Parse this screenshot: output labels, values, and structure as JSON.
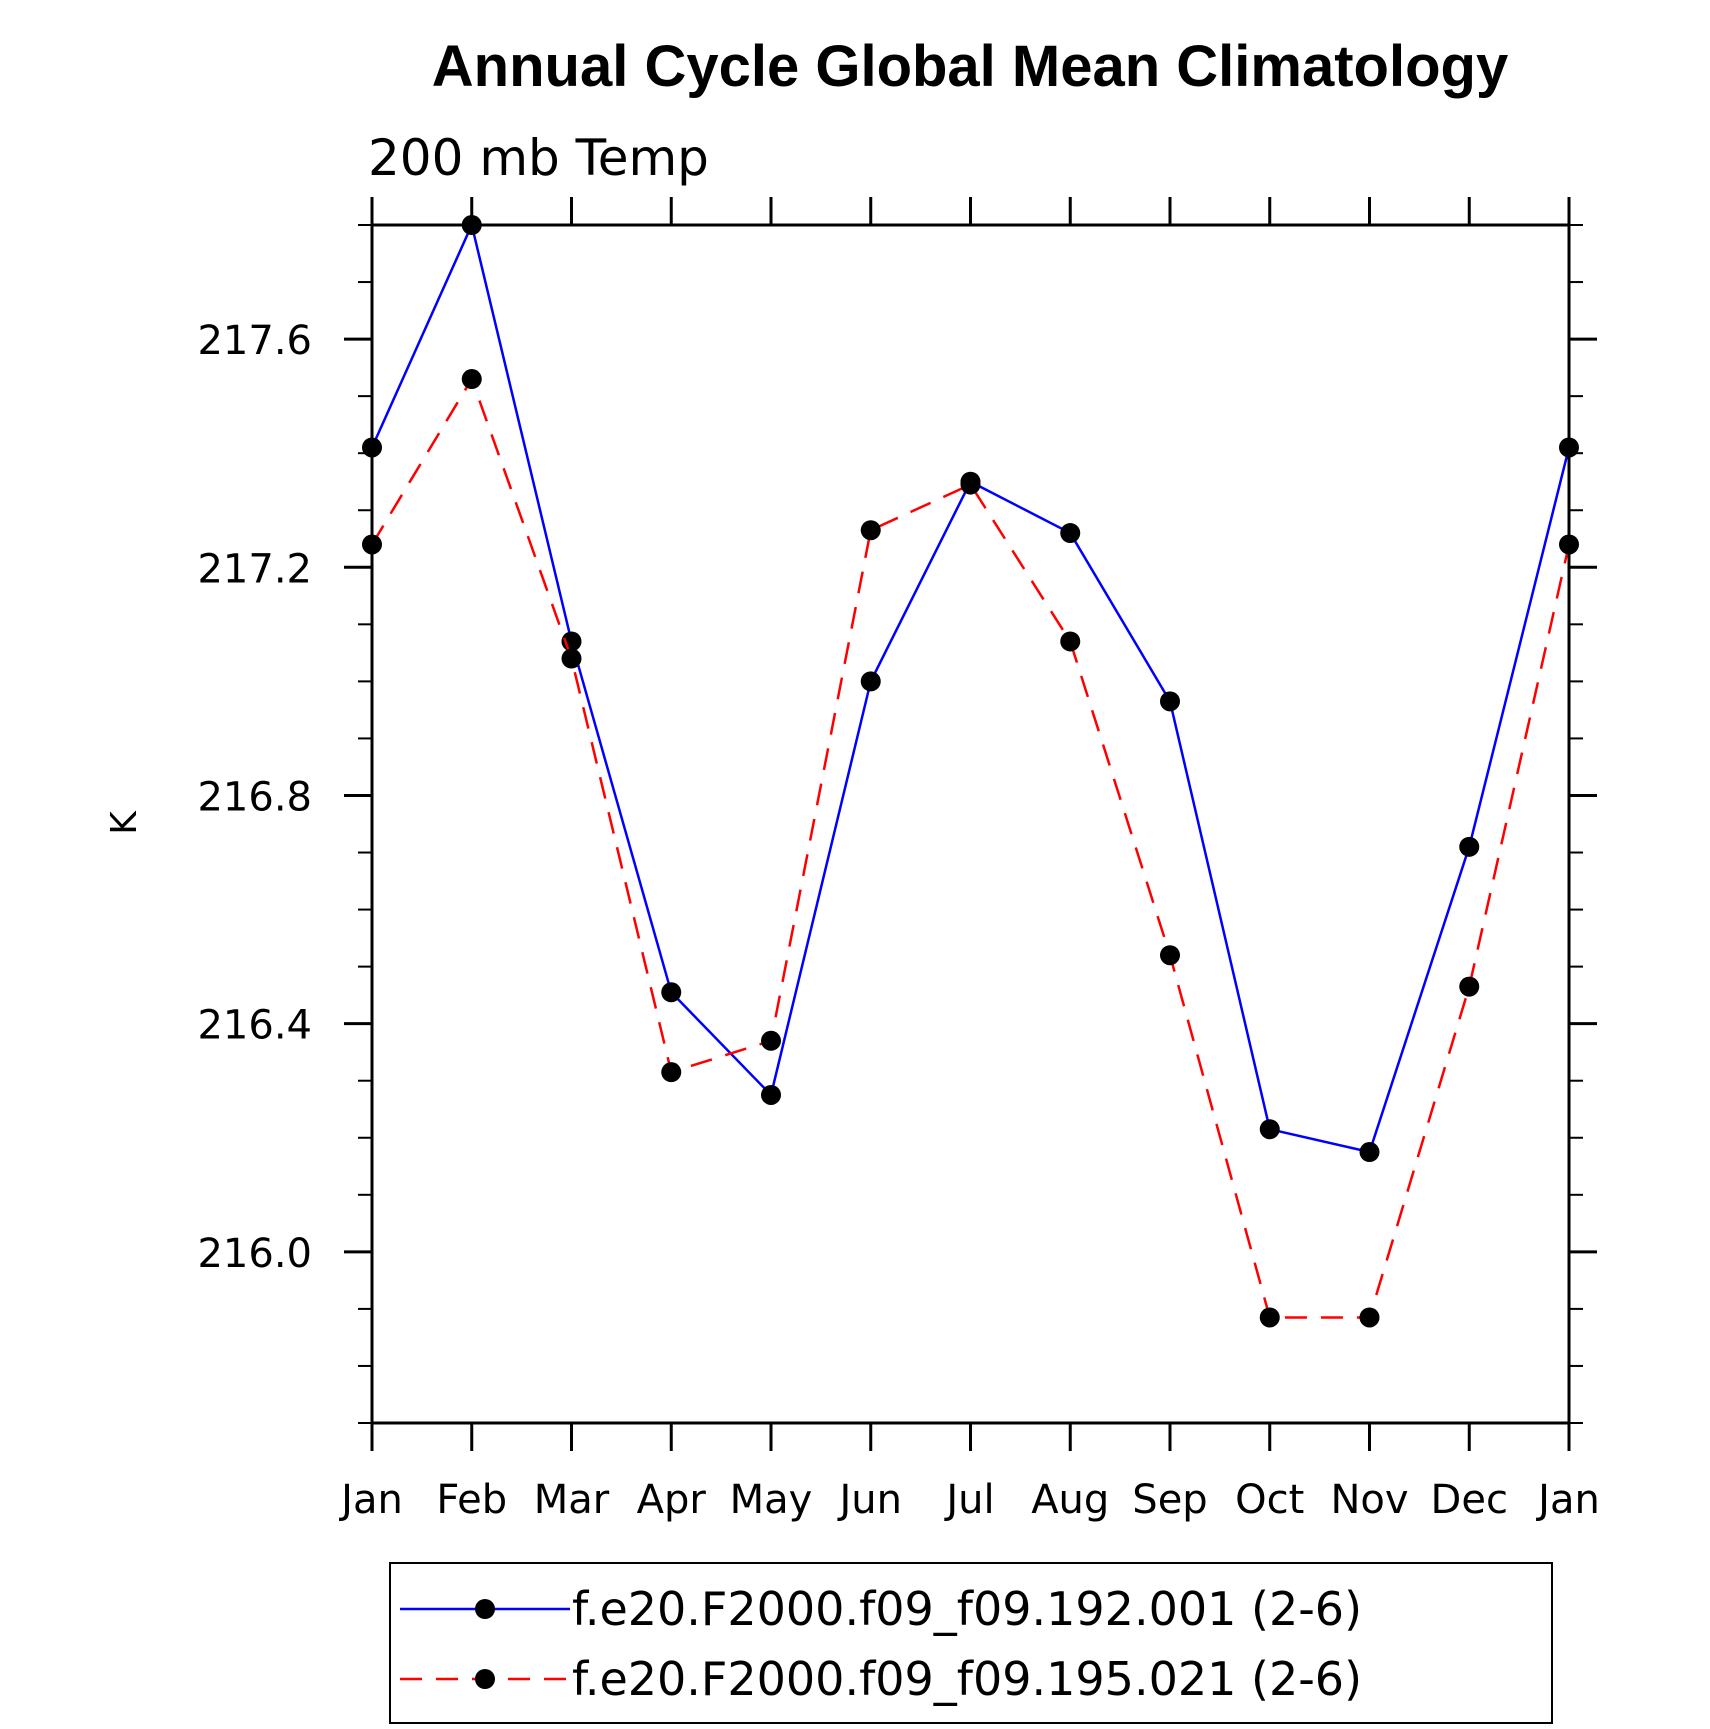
{
  "chart_data": {
    "type": "line",
    "title": "Annual Cycle Global Mean Climatology",
    "subtitle": "200 mb Temp",
    "ylabel": "K",
    "xlabel": "",
    "categories": [
      "Jan",
      "Feb",
      "Mar",
      "Apr",
      "May",
      "Jun",
      "Jul",
      "Aug",
      "Sep",
      "Oct",
      "Nov",
      "Dec",
      "Jan"
    ],
    "ylim": [
      215.7,
      217.8
    ],
    "yticks": [
      216.0,
      216.4,
      216.8,
      217.2,
      217.6
    ],
    "ytick_labels": [
      "216.0",
      "216.4",
      "216.8",
      "217.2",
      "217.6"
    ],
    "y_minor_step": 0.1,
    "grid": false,
    "legend_position": "bottom",
    "series": [
      {
        "name": "f.e20.F2000.f09_f09.192.001 (2-6)",
        "color": "#0000ff",
        "dash": "solid",
        "marker": "circle",
        "values": [
          217.41,
          217.8,
          217.07,
          216.455,
          216.275,
          217.0,
          217.35,
          217.26,
          216.965,
          216.215,
          216.175,
          216.71,
          217.41
        ]
      },
      {
        "name": "f.e20.F2000.f09_f09.195.021 (2-6)",
        "color": "#ff0000",
        "dash": "dashed",
        "marker": "circle",
        "values": [
          217.24,
          217.53,
          217.04,
          216.315,
          216.37,
          217.265,
          217.345,
          217.07,
          216.52,
          215.885,
          215.885,
          216.465,
          217.24
        ]
      }
    ]
  }
}
